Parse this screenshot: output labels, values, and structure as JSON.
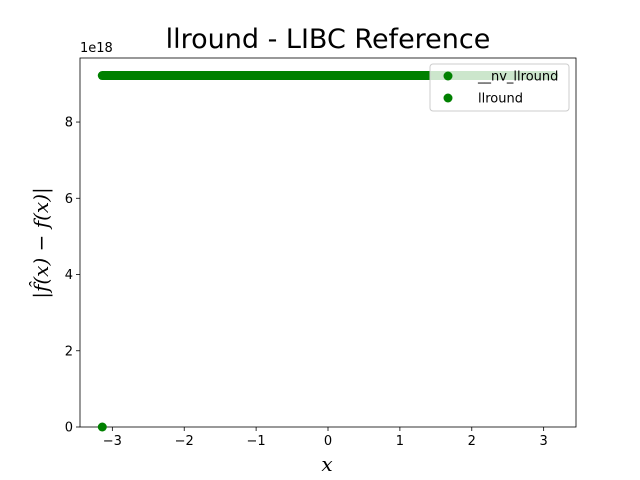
{
  "chart_data": {
    "type": "scatter",
    "title": "llround - LIBC Reference",
    "xlabel": "x",
    "ylabel": "|f̂(x) − f(x)|",
    "y_offset_text": "1e18",
    "xlim": [
      -3.45,
      3.45
    ],
    "ylim": [
      0,
      9.68
    ],
    "xticks": [
      -3,
      -2,
      -1,
      0,
      1,
      2,
      3
    ],
    "xtick_labels": [
      "−3",
      "−2",
      "−1",
      "0",
      "1",
      "2",
      "3"
    ],
    "yticks": [
      0,
      2,
      4,
      6,
      8
    ],
    "ytick_labels": [
      "0",
      "2",
      "4",
      "6",
      "8"
    ],
    "grid": false,
    "legend_position": "top-right",
    "series": [
      {
        "name": "__nv_llround",
        "color": "#008000",
        "x_range": [
          -3.14,
          3.14
        ],
        "y_value": 9.22,
        "points": [
          [
            -3.14,
            0
          ]
        ]
      },
      {
        "name": "llround",
        "color": "#008000",
        "points": []
      }
    ]
  }
}
